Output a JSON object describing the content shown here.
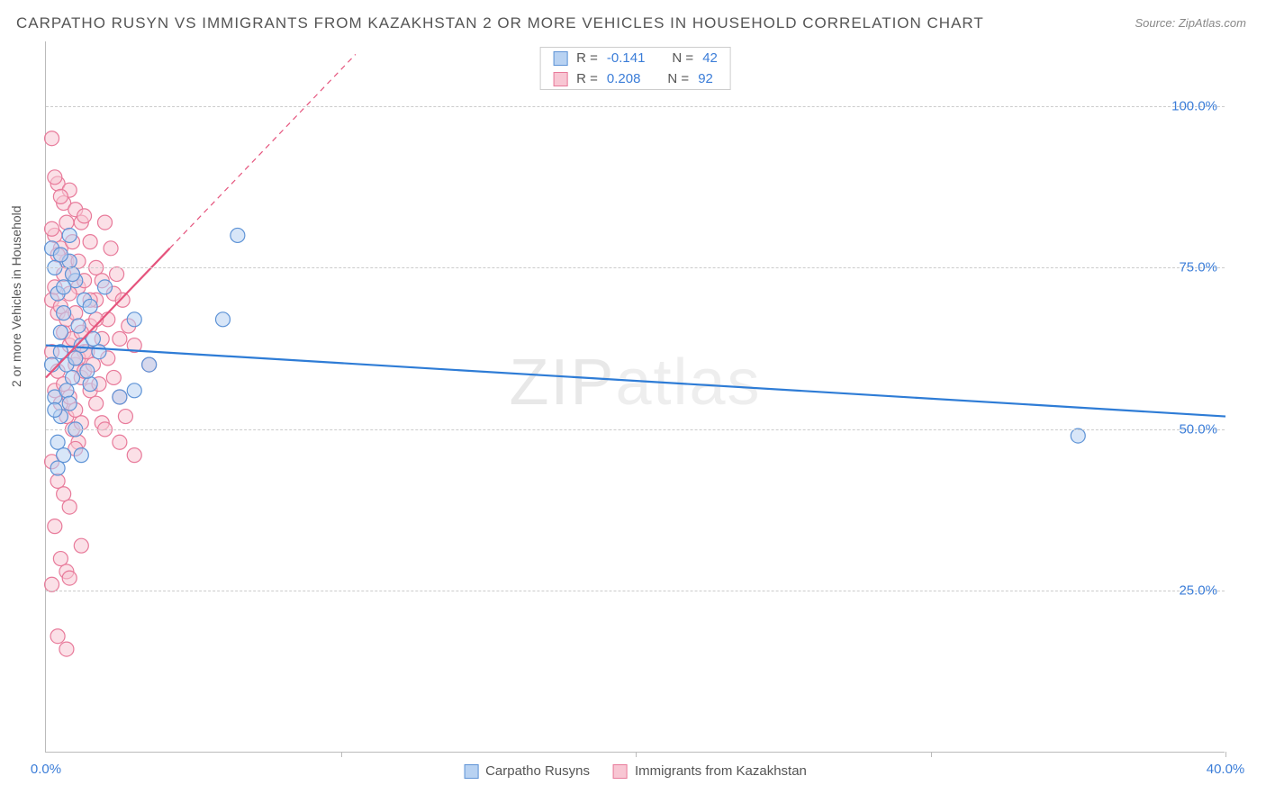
{
  "title": "CARPATHO RUSYN VS IMMIGRANTS FROM KAZAKHSTAN 2 OR MORE VEHICLES IN HOUSEHOLD CORRELATION CHART",
  "source_prefix": "Source: ",
  "source_link": "ZipAtlas.com",
  "ylabel": "2 or more Vehicles in Household",
  "watermark": "ZIPatlas",
  "chart": {
    "type": "scatter",
    "background_color": "#ffffff",
    "grid_color": "#cccccc",
    "axis_color": "#bbbbbb",
    "text_color": "#555555",
    "value_color": "#3b7dd8",
    "xlim": [
      0,
      40
    ],
    "ylim": [
      0,
      110
    ],
    "yticks": [
      25,
      50,
      75,
      100
    ],
    "ytick_labels": [
      "25.0%",
      "50.0%",
      "75.0%",
      "100.0%"
    ],
    "xticks": [
      0,
      20,
      40
    ],
    "xtick_labels": [
      "0.0%",
      "",
      "40.0%"
    ],
    "xtick_minor": [
      10,
      30
    ],
    "marker_radius": 8,
    "marker_opacity": 0.55,
    "line_width": 2.2,
    "series": [
      {
        "name": "Carpatho Rusyns",
        "color": "#6aa3e8",
        "fill": "#b8d2f2",
        "stroke": "#5e93d6",
        "R": "-0.141",
        "N": "42",
        "regression": {
          "x1": 0,
          "y1": 63,
          "x2": 40,
          "y2": 52
        },
        "points": [
          [
            0.3,
            75
          ],
          [
            0.4,
            71
          ],
          [
            0.6,
            68
          ],
          [
            0.8,
            76
          ],
          [
            1.0,
            73
          ],
          [
            0.5,
            65
          ],
          [
            0.7,
            60
          ],
          [
            0.9,
            58
          ],
          [
            1.2,
            63
          ],
          [
            0.3,
            55
          ],
          [
            0.5,
            52
          ],
          [
            1.5,
            57
          ],
          [
            1.8,
            62
          ],
          [
            2.0,
            72
          ],
          [
            2.5,
            55
          ],
          [
            3.0,
            67
          ],
          [
            3.5,
            60
          ],
          [
            0.4,
            48
          ],
          [
            0.6,
            46
          ],
          [
            1.0,
            50
          ],
          [
            0.2,
            78
          ],
          [
            0.8,
            80
          ],
          [
            1.3,
            70
          ],
          [
            1.1,
            66
          ],
          [
            0.5,
            62
          ],
          [
            0.9,
            74
          ],
          [
            1.4,
            59
          ],
          [
            0.3,
            53
          ],
          [
            0.7,
            56
          ],
          [
            1.6,
            64
          ],
          [
            6.5,
            80
          ],
          [
            6.0,
            67
          ],
          [
            3.0,
            56
          ],
          [
            1.2,
            46
          ],
          [
            0.4,
            44
          ],
          [
            0.2,
            60
          ],
          [
            0.6,
            72
          ],
          [
            0.8,
            54
          ],
          [
            1.0,
            61
          ],
          [
            1.5,
            69
          ],
          [
            35.0,
            49
          ],
          [
            0.5,
            77
          ]
        ]
      },
      {
        "name": "Immigrants from Kazakhstan",
        "color": "#f29bb3",
        "fill": "#f8c6d3",
        "stroke": "#e87a9a",
        "R": "0.208",
        "N": "92",
        "regression": {
          "x1": 0,
          "y1": 58,
          "x2": 4.2,
          "y2": 78
        },
        "extrapolation": {
          "x1": 4.2,
          "y1": 78,
          "x2": 10.5,
          "y2": 108
        },
        "points": [
          [
            0.2,
            95
          ],
          [
            0.4,
            88
          ],
          [
            0.6,
            85
          ],
          [
            0.8,
            87
          ],
          [
            1.0,
            84
          ],
          [
            1.2,
            82
          ],
          [
            0.3,
            80
          ],
          [
            0.5,
            78
          ],
          [
            0.7,
            76
          ],
          [
            0.9,
            74
          ],
          [
            1.1,
            72
          ],
          [
            1.3,
            83
          ],
          [
            1.5,
            79
          ],
          [
            1.7,
            75
          ],
          [
            0.2,
            70
          ],
          [
            0.4,
            68
          ],
          [
            0.6,
            65
          ],
          [
            0.8,
            63
          ],
          [
            1.0,
            60
          ],
          [
            1.2,
            58
          ],
          [
            0.3,
            56
          ],
          [
            0.5,
            54
          ],
          [
            0.7,
            52
          ],
          [
            0.9,
            50
          ],
          [
            1.1,
            48
          ],
          [
            1.3,
            62
          ],
          [
            1.5,
            66
          ],
          [
            1.7,
            70
          ],
          [
            1.9,
            73
          ],
          [
            2.1,
            67
          ],
          [
            2.3,
            71
          ],
          [
            2.5,
            64
          ],
          [
            0.2,
            45
          ],
          [
            0.4,
            42
          ],
          [
            0.6,
            40
          ],
          [
            0.8,
            38
          ],
          [
            1.0,
            47
          ],
          [
            0.3,
            35
          ],
          [
            0.5,
            30
          ],
          [
            0.7,
            28
          ],
          [
            0.2,
            26
          ],
          [
            0.8,
            27
          ],
          [
            1.2,
            32
          ],
          [
            0.4,
            18
          ],
          [
            0.7,
            16
          ],
          [
            0.3,
            89
          ],
          [
            0.5,
            86
          ],
          [
            0.7,
            82
          ],
          [
            0.9,
            79
          ],
          [
            1.1,
            76
          ],
          [
            1.3,
            73
          ],
          [
            1.5,
            70
          ],
          [
            1.7,
            67
          ],
          [
            1.9,
            64
          ],
          [
            2.1,
            61
          ],
          [
            2.3,
            58
          ],
          [
            2.5,
            55
          ],
          [
            2.7,
            52
          ],
          [
            0.2,
            62
          ],
          [
            0.4,
            59
          ],
          [
            0.6,
            57
          ],
          [
            0.8,
            55
          ],
          [
            1.0,
            53
          ],
          [
            1.2,
            51
          ],
          [
            0.3,
            72
          ],
          [
            0.5,
            69
          ],
          [
            0.7,
            67
          ],
          [
            0.9,
            64
          ],
          [
            1.1,
            61
          ],
          [
            1.3,
            59
          ],
          [
            1.5,
            56
          ],
          [
            1.7,
            54
          ],
          [
            1.9,
            51
          ],
          [
            0.2,
            81
          ],
          [
            0.4,
            77
          ],
          [
            0.6,
            74
          ],
          [
            0.8,
            71
          ],
          [
            1.0,
            68
          ],
          [
            1.2,
            65
          ],
          [
            1.4,
            62
          ],
          [
            1.6,
            60
          ],
          [
            1.8,
            57
          ],
          [
            2.0,
            82
          ],
          [
            2.2,
            78
          ],
          [
            2.4,
            74
          ],
          [
            2.6,
            70
          ],
          [
            2.8,
            66
          ],
          [
            3.0,
            63
          ],
          [
            2.0,
            50
          ],
          [
            2.5,
            48
          ],
          [
            3.0,
            46
          ],
          [
            3.5,
            60
          ]
        ]
      }
    ]
  },
  "legend_top_labels": {
    "R": "R =",
    "N": "N ="
  },
  "legend_bottom": [
    "Carpatho Rusyns",
    "Immigrants from Kazakhstan"
  ]
}
